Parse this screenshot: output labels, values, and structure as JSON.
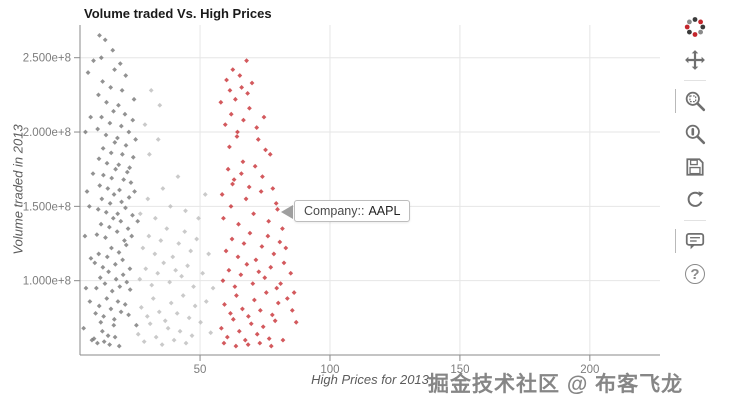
{
  "header": {
    "title": "Volume traded Vs. High Prices"
  },
  "tooltip": {
    "label": "Company::",
    "value": "AAPL"
  },
  "watermark": {
    "text": "掘金技术社区 @ 布客飞龙"
  },
  "toolbar": {
    "icons": [
      "bokeh-logo",
      "pan-icon",
      "box-zoom-icon",
      "wheel-zoom-icon",
      "save-icon",
      "reset-icon",
      "hover-icon",
      "help-icon"
    ],
    "help_glyph": "?"
  },
  "chart_data": {
    "type": "scatter",
    "title": "Volume traded Vs. High Prices",
    "xlabel": "High Prices for 2013",
    "ylabel": "Volume traded in 2013",
    "x_range": [
      3.8,
      227
    ],
    "y_units": "1e8",
    "y_range_e8": [
      0.5,
      2.72
    ],
    "x_ticks": [
      50,
      100,
      150,
      200
    ],
    "y_ticks_e8": [
      1.0,
      1.5,
      2.0,
      2.5
    ],
    "y_tick_labels": [
      "1.000e+8",
      "1.500e+8",
      "2.000e+8",
      "2.500e+8"
    ],
    "grid": true,
    "legend_position": "none",
    "series": [
      {
        "name": "other-companies-dark",
        "color": "#6e6e6e",
        "points": [
          [
            9.2,
            0.61
          ],
          [
            10.5,
            0.58
          ],
          [
            11.8,
            0.72
          ],
          [
            12.4,
            0.66
          ],
          [
            13.1,
            0.59
          ],
          [
            14.6,
            0.63
          ],
          [
            15.2,
            0.57
          ],
          [
            16.8,
            0.7
          ],
          [
            17.3,
            0.62
          ],
          [
            18.9,
            0.56
          ],
          [
            9.8,
            0.78
          ],
          [
            11.2,
            0.83
          ],
          [
            12.9,
            0.76
          ],
          [
            14.1,
            0.88
          ],
          [
            15.7,
            0.81
          ],
          [
            17.0,
            0.74
          ],
          [
            18.4,
            0.86
          ],
          [
            19.6,
            0.79
          ],
          [
            21.2,
            0.84
          ],
          [
            22.5,
            0.77
          ],
          [
            10.1,
            0.95
          ],
          [
            11.6,
            1.02
          ],
          [
            13.4,
            0.98
          ],
          [
            14.8,
            1.06
          ],
          [
            16.2,
            0.93
          ],
          [
            17.7,
            1.01
          ],
          [
            19.1,
            0.96
          ],
          [
            20.4,
            1.04
          ],
          [
            21.8,
            0.99
          ],
          [
            23.1,
            0.94
          ],
          [
            9.5,
            1.12
          ],
          [
            11.0,
            1.18
          ],
          [
            12.6,
            1.09
          ],
          [
            14.3,
            1.16
          ],
          [
            15.9,
            1.22
          ],
          [
            17.4,
            1.11
          ],
          [
            18.8,
            1.19
          ],
          [
            20.2,
            1.14
          ],
          [
            21.6,
            1.24
          ],
          [
            23.0,
            1.08
          ],
          [
            10.3,
            1.31
          ],
          [
            11.9,
            1.38
          ],
          [
            13.6,
            1.29
          ],
          [
            15.1,
            1.36
          ],
          [
            16.6,
            1.42
          ],
          [
            18.1,
            1.33
          ],
          [
            19.5,
            1.4
          ],
          [
            20.9,
            1.27
          ],
          [
            22.3,
            1.35
          ],
          [
            23.7,
            1.3
          ],
          [
            10.8,
            1.48
          ],
          [
            12.2,
            1.55
          ],
          [
            13.9,
            1.46
          ],
          [
            15.4,
            1.52
          ],
          [
            16.9,
            1.58
          ],
          [
            18.3,
            1.45
          ],
          [
            19.8,
            1.53
          ],
          [
            21.3,
            1.49
          ],
          [
            22.7,
            1.56
          ],
          [
            24.0,
            1.44
          ],
          [
            11.4,
            1.64
          ],
          [
            12.8,
            1.71
          ],
          [
            14.5,
            1.62
          ],
          [
            16.0,
            1.69
          ],
          [
            17.5,
            1.75
          ],
          [
            19.0,
            1.61
          ],
          [
            20.6,
            1.68
          ],
          [
            22.0,
            1.73
          ],
          [
            23.4,
            1.66
          ],
          [
            24.8,
            1.6
          ],
          [
            11.1,
            1.82
          ],
          [
            12.7,
            1.89
          ],
          [
            14.2,
            1.79
          ],
          [
            15.8,
            1.86
          ],
          [
            17.2,
            1.93
          ],
          [
            18.7,
            1.78
          ],
          [
            20.1,
            1.85
          ],
          [
            21.5,
            1.91
          ],
          [
            22.9,
            1.76
          ],
          [
            24.3,
            1.83
          ],
          [
            10.6,
            2.02
          ],
          [
            12.1,
            2.1
          ],
          [
            13.8,
            1.98
          ],
          [
            15.3,
            2.06
          ],
          [
            16.7,
            2.14
          ],
          [
            18.2,
            1.96
          ],
          [
            19.7,
            2.04
          ],
          [
            21.1,
            2.12
          ],
          [
            22.6,
            2.0
          ],
          [
            24.1,
            2.08
          ],
          [
            10.9,
            2.25
          ],
          [
            12.5,
            2.34
          ],
          [
            14.0,
            2.2
          ],
          [
            15.6,
            2.3
          ],
          [
            17.1,
            2.42
          ],
          [
            18.6,
            2.18
          ],
          [
            20.0,
            2.28
          ],
          [
            21.4,
            2.38
          ],
          [
            12.0,
            2.5
          ],
          [
            13.5,
            2.62
          ],
          [
            9.0,
            2.48
          ],
          [
            16.4,
            2.55
          ],
          [
            19.3,
            2.46
          ],
          [
            11.3,
            2.65
          ],
          [
            5.2,
            0.68
          ],
          [
            6.1,
            0.95
          ],
          [
            5.7,
            1.3
          ],
          [
            6.5,
            1.6
          ],
          [
            5.9,
            2.0
          ],
          [
            6.9,
            2.4
          ],
          [
            8.4,
            0.6
          ],
          [
            7.6,
            0.86
          ],
          [
            8.0,
            1.15
          ],
          [
            7.4,
            1.5
          ],
          [
            8.8,
            1.72
          ],
          [
            7.9,
            2.1
          ],
          [
            25.5,
            0.7
          ],
          [
            26.0,
            1.4
          ],
          [
            25.2,
            1.95
          ],
          [
            24.6,
            2.22
          ]
        ]
      },
      {
        "name": "other-companies-light",
        "color": "#b8b8b8",
        "points": [
          [
            26.2,
            0.64
          ],
          [
            28.5,
            0.59
          ],
          [
            30.8,
            0.71
          ],
          [
            33.1,
            0.62
          ],
          [
            35.4,
            0.57
          ],
          [
            37.7,
            0.68
          ],
          [
            40.0,
            0.6
          ],
          [
            42.3,
            0.66
          ],
          [
            44.6,
            0.58
          ],
          [
            46.9,
            0.63
          ],
          [
            27.4,
            0.82
          ],
          [
            29.7,
            0.76
          ],
          [
            32.0,
            0.88
          ],
          [
            34.3,
            0.79
          ],
          [
            36.6,
            0.73
          ],
          [
            38.9,
            0.85
          ],
          [
            41.2,
            0.78
          ],
          [
            43.5,
            0.9
          ],
          [
            45.8,
            0.75
          ],
          [
            48.1,
            0.83
          ],
          [
            26.8,
            1.01
          ],
          [
            29.1,
            1.08
          ],
          [
            31.4,
            0.97
          ],
          [
            33.7,
            1.05
          ],
          [
            36.0,
            1.12
          ],
          [
            38.3,
            0.99
          ],
          [
            40.6,
            1.07
          ],
          [
            42.9,
            1.03
          ],
          [
            45.2,
            1.1
          ],
          [
            47.5,
            0.96
          ],
          [
            28.0,
            1.22
          ],
          [
            30.3,
            1.3
          ],
          [
            32.6,
            1.18
          ],
          [
            34.9,
            1.27
          ],
          [
            37.2,
            1.35
          ],
          [
            39.5,
            1.16
          ],
          [
            41.8,
            1.25
          ],
          [
            44.1,
            1.33
          ],
          [
            46.4,
            1.2
          ],
          [
            48.7,
            1.28
          ],
          [
            27.0,
            1.45
          ],
          [
            29.9,
            1.55
          ],
          [
            32.8,
            1.42
          ],
          [
            35.7,
            1.62
          ],
          [
            38.6,
            1.5
          ],
          [
            41.5,
            1.7
          ],
          [
            44.4,
            1.47
          ],
          [
            30.5,
            1.85
          ],
          [
            33.9,
            1.95
          ],
          [
            28.8,
            2.05
          ],
          [
            31.2,
            2.28
          ],
          [
            34.5,
            2.18
          ],
          [
            50.2,
            0.72
          ],
          [
            52.4,
            0.86
          ],
          [
            54.1,
            0.65
          ],
          [
            51.0,
            1.05
          ],
          [
            53.3,
            1.18
          ],
          [
            49.4,
            1.42
          ],
          [
            52.0,
            1.58
          ],
          [
            55.0,
            0.95
          ]
        ]
      },
      {
        "name": "AAPL",
        "color": "#c42127",
        "points": [
          [
            58.2,
            0.68
          ],
          [
            60.5,
            0.62
          ],
          [
            62.8,
            0.74
          ],
          [
            65.1,
            0.66
          ],
          [
            67.4,
            0.6
          ],
          [
            69.7,
            0.71
          ],
          [
            72.0,
            0.64
          ],
          [
            74.3,
            0.69
          ],
          [
            76.6,
            0.61
          ],
          [
            78.9,
            0.73
          ],
          [
            59.4,
            0.84
          ],
          [
            61.7,
            0.78
          ],
          [
            64.0,
            0.9
          ],
          [
            66.3,
            0.81
          ],
          [
            68.6,
            0.76
          ],
          [
            70.9,
            0.87
          ],
          [
            73.2,
            0.8
          ],
          [
            75.5,
            0.92
          ],
          [
            77.8,
            0.77
          ],
          [
            80.1,
            0.85
          ],
          [
            58.8,
            1.0
          ],
          [
            61.1,
            1.07
          ],
          [
            63.4,
            0.96
          ],
          [
            65.7,
            1.04
          ],
          [
            68.0,
            1.11
          ],
          [
            70.3,
            0.98
          ],
          [
            72.6,
            1.06
          ],
          [
            74.9,
            1.02
          ],
          [
            77.2,
            1.09
          ],
          [
            79.5,
            0.95
          ],
          [
            60.0,
            1.2
          ],
          [
            62.3,
            1.28
          ],
          [
            64.6,
            1.16
          ],
          [
            66.9,
            1.25
          ],
          [
            69.2,
            1.32
          ],
          [
            71.5,
            1.14
          ],
          [
            73.8,
            1.23
          ],
          [
            76.1,
            1.3
          ],
          [
            78.4,
            1.18
          ],
          [
            80.7,
            1.26
          ],
          [
            59.0,
            1.42
          ],
          [
            61.9,
            1.5
          ],
          [
            64.8,
            1.38
          ],
          [
            67.7,
            1.55
          ],
          [
            70.6,
            1.45
          ],
          [
            73.5,
            1.6
          ],
          [
            76.4,
            1.4
          ],
          [
            79.3,
            1.52
          ],
          [
            62.5,
            1.65
          ],
          [
            65.9,
            1.72
          ],
          [
            58.5,
            1.58
          ],
          [
            60.8,
            1.75
          ],
          [
            63.1,
            1.68
          ],
          [
            66.5,
            1.8
          ],
          [
            68.9,
            1.63
          ],
          [
            71.2,
            1.77
          ],
          [
            74.0,
            1.7
          ],
          [
            77.0,
            1.85
          ],
          [
            61.3,
            1.9
          ],
          [
            64.2,
            1.97
          ],
          [
            59.7,
            2.05
          ],
          [
            62.0,
            2.12
          ],
          [
            64.4,
            2.0
          ],
          [
            66.7,
            2.08
          ],
          [
            69.0,
            2.16
          ],
          [
            71.8,
            2.03
          ],
          [
            74.6,
            2.1
          ],
          [
            63.6,
            2.22
          ],
          [
            66.0,
            2.3
          ],
          [
            68.3,
            2.26
          ],
          [
            60.2,
            2.35
          ],
          [
            62.6,
            2.42
          ],
          [
            65.3,
            2.38
          ],
          [
            67.9,
            2.48
          ],
          [
            61.5,
            2.28
          ],
          [
            70.0,
            2.33
          ],
          [
            58.0,
            2.2
          ],
          [
            72.4,
            1.95
          ],
          [
            75.2,
            1.88
          ],
          [
            78.0,
            1.62
          ],
          [
            81.0,
            0.98
          ],
          [
            82.3,
            1.12
          ],
          [
            83.6,
            0.88
          ],
          [
            84.9,
            1.05
          ],
          [
            86.2,
            0.92
          ],
          [
            81.7,
            1.35
          ],
          [
            83.0,
            1.22
          ],
          [
            85.5,
            0.8
          ],
          [
            87.0,
            0.72
          ],
          [
            79.8,
            1.48
          ],
          [
            59.2,
            0.58
          ],
          [
            63.8,
            0.56
          ],
          [
            68.5,
            0.57
          ],
          [
            73.0,
            0.58
          ],
          [
            77.4,
            0.56
          ],
          [
            81.9,
            0.6
          ]
        ]
      }
    ]
  }
}
